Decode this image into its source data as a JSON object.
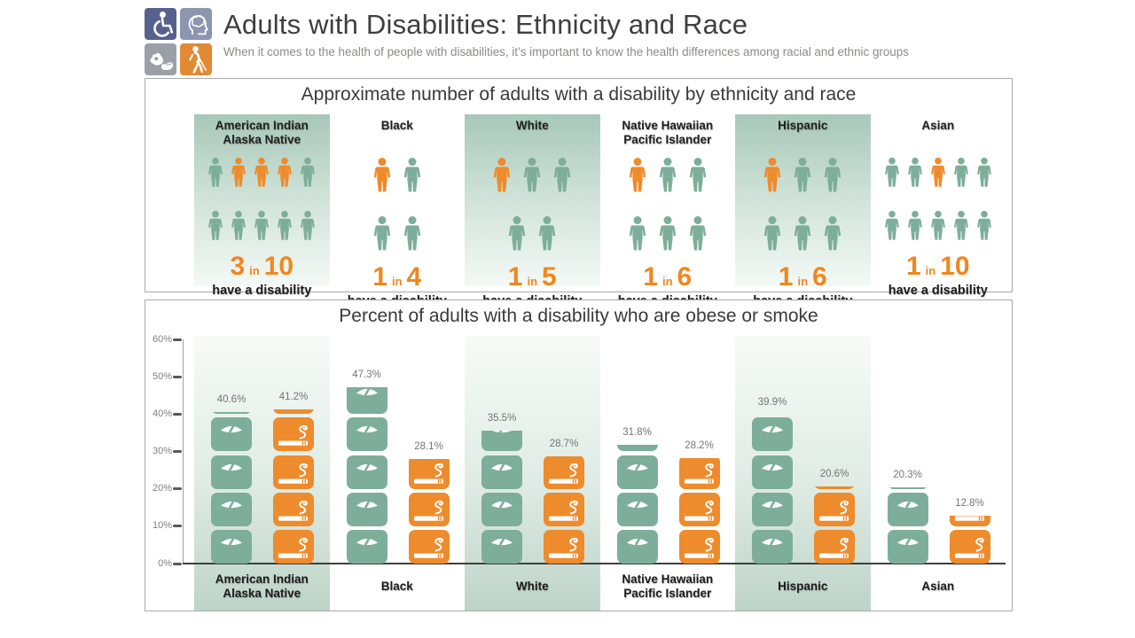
{
  "header": {
    "title": "Adults with Disabilities: Ethnicity and Race",
    "subtitle": "When it comes to the health of people with disabilities, it’s important to know the health differences among racial and ethnic groups",
    "icon_tiles": [
      {
        "name": "wheelchair-icon",
        "color": "#56618e"
      },
      {
        "name": "head-brain-icon",
        "color": "#8c96ae"
      },
      {
        "name": "sign-language-icon",
        "color": "#9aa0a6"
      },
      {
        "name": "blind-walking-icon",
        "color": "#e18a33"
      }
    ]
  },
  "colors": {
    "teal": "#7dae99",
    "orange": "#ee8b2c",
    "ratio_text": "#f0871e",
    "title_text": "#3f3f3f",
    "label_text": "#1d1d1d",
    "axis_text": "#7f7f7f"
  },
  "chart_data": [
    {
      "type": "pictogram",
      "title": "Approximate number of adults with a disability by ethnicity and race",
      "caption": "have a disability",
      "legend_note": "orange person = has a disability, teal person = no disability",
      "groups": [
        {
          "label_lines": [
            "American Indian",
            "Alaska Native"
          ],
          "shaded": true,
          "ratio_num": "3",
          "ratio_word": "in",
          "ratio_den": "10",
          "rows": [
            [
              "t",
              "o",
              "o",
              "o",
              "t"
            ],
            [
              "t",
              "t",
              "t",
              "t",
              "t"
            ]
          ]
        },
        {
          "label_lines": [
            "Black"
          ],
          "shaded": false,
          "ratio_num": "1",
          "ratio_word": "in",
          "ratio_den": "4",
          "rows": [
            [
              "o",
              "t"
            ],
            [
              "t",
              "t"
            ]
          ]
        },
        {
          "label_lines": [
            "White"
          ],
          "shaded": true,
          "ratio_num": "1",
          "ratio_word": "in",
          "ratio_den": "5",
          "rows": [
            [
              "o",
              "t",
              "t"
            ],
            [
              "t",
              "t"
            ]
          ]
        },
        {
          "label_lines": [
            "Native Hawaiian",
            "Pacific Islander"
          ],
          "shaded": false,
          "ratio_num": "1",
          "ratio_word": "in",
          "ratio_den": "6",
          "rows": [
            [
              "o",
              "t",
              "t"
            ],
            [
              "t",
              "t",
              "t"
            ]
          ]
        },
        {
          "label_lines": [
            "Hispanic"
          ],
          "shaded": true,
          "ratio_num": "1",
          "ratio_word": "in",
          "ratio_den": "6",
          "rows": [
            [
              "o",
              "t",
              "t"
            ],
            [
              "t",
              "t",
              "t"
            ]
          ]
        },
        {
          "label_lines": [
            "Asian"
          ],
          "shaded": false,
          "ratio_num": "1",
          "ratio_word": "in",
          "ratio_den": "10",
          "rows": [
            [
              "t",
              "t",
              "o",
              "t",
              "t"
            ],
            [
              "t",
              "t",
              "t",
              "t",
              "t"
            ]
          ]
        }
      ]
    },
    {
      "type": "bar",
      "title": "Percent of adults with a disability who are obese or smoke",
      "ylim": [
        0,
        60
      ],
      "ytick_labels": [
        "0%",
        "10%",
        "20%",
        "30%",
        "40%",
        "50%",
        "60%"
      ],
      "grid": false,
      "legend_position": "none",
      "categories_lines": [
        [
          "American Indian",
          "Alaska Native"
        ],
        [
          "Black"
        ],
        [
          "White"
        ],
        [
          "Native Hawaiian",
          "Pacific Islander"
        ],
        [
          "Hispanic"
        ],
        [
          "Asian"
        ]
      ],
      "shaded_columns": [
        true,
        false,
        true,
        false,
        true,
        false
      ],
      "series": [
        {
          "name": "obese",
          "icon": "scale-icon",
          "color": "#7dae99",
          "values": [
            40.6,
            47.3,
            35.5,
            31.8,
            39.9,
            20.3
          ]
        },
        {
          "name": "smoke",
          "icon": "cigarette-icon",
          "color": "#ee8b2c",
          "values": [
            41.2,
            28.1,
            28.7,
            28.2,
            20.6,
            12.8
          ]
        }
      ],
      "value_label_suffix": "%"
    }
  ]
}
